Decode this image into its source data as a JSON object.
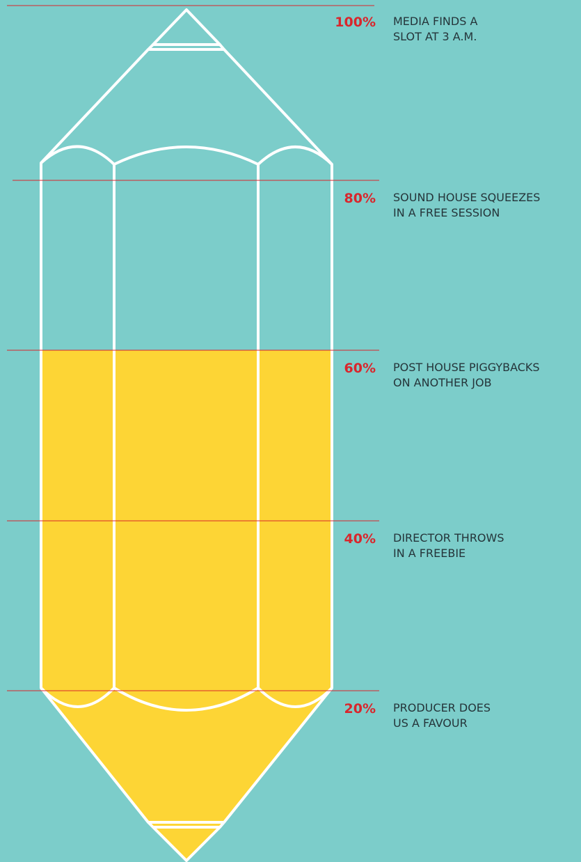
{
  "levels": [
    {
      "percent": "100%",
      "lines": [
        "MEDIA FINDS A",
        "SLOT AT 3 A.M."
      ]
    },
    {
      "percent": "80%",
      "lines": [
        "SOUND HOUSE SQUEEZES",
        "IN A FREE SESSION"
      ]
    },
    {
      "percent": "60%",
      "lines": [
        "POST HOUSE PIGGYBACKS",
        "ON ANOTHER JOB"
      ]
    },
    {
      "percent": "40%",
      "lines": [
        "DIRECTOR THROWS",
        "IN A FREEBIE"
      ]
    },
    {
      "percent": "20%",
      "lines": [
        "PRODUCER DOES",
        "US A FAVOUR"
      ]
    }
  ]
}
